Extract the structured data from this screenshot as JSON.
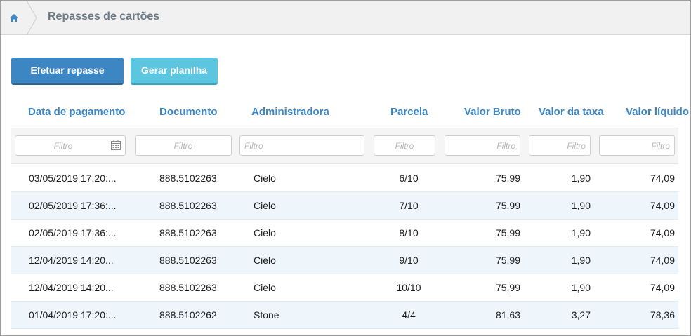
{
  "breadcrumb": {
    "title": "Repasses de cartões"
  },
  "toolbar": {
    "primary_label": "Efetuar repasse",
    "secondary_label": "Gerar planilha"
  },
  "table": {
    "columns": [
      "Data de pagamento",
      "Documento",
      "Administradora",
      "Parcela",
      "Valor Bruto",
      "Valor da taxa",
      "Valor líquido"
    ],
    "filter_placeholder": "Filtro",
    "rows": [
      [
        "03/05/2019 17:20:...",
        "888.5102263",
        "Cielo",
        "6/10",
        "75,99",
        "1,90",
        "74,09"
      ],
      [
        "02/05/2019 17:36:...",
        "888.5102263",
        "Cielo",
        "7/10",
        "75,99",
        "1,90",
        "74,09"
      ],
      [
        "02/05/2019 17:36:...",
        "888.5102263",
        "Cielo",
        "8/10",
        "75,99",
        "1,90",
        "74,09"
      ],
      [
        "12/04/2019 14:20...",
        "888.5102263",
        "Cielo",
        "9/10",
        "75,99",
        "1,90",
        "74,09"
      ],
      [
        "12/04/2019 14:20...",
        "888.5102263",
        "Cielo",
        "10/10",
        "75,99",
        "1,90",
        "74,09"
      ],
      [
        "01/04/2019 17:20:...",
        "888.5102262",
        "Stone",
        "4/4",
        "81,63",
        "3,27",
        "78,36"
      ]
    ]
  },
  "icons": {
    "home": "home-icon",
    "calendar": "calendar-icon"
  },
  "colors": {
    "accent": "#3c86c4",
    "secondary": "#5cc5e0",
    "row_alt": "#eef5fb"
  }
}
